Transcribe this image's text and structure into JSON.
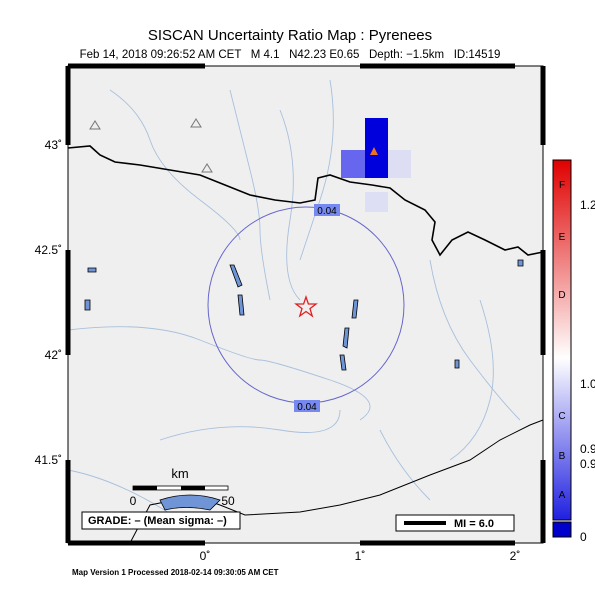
{
  "header": {
    "title": "SISCAN Uncertainty Ratio Map : Pyrenees",
    "subtitle": "Feb 14, 2018 09:26:52 AM CET   M 4.1   N42.23 E0.65   Depth: −1.5km   ID:14519"
  },
  "map": {
    "lat_labels": [
      "43˚",
      "42.5˚",
      "42˚",
      "41.5˚"
    ],
    "lon_labels": [
      "0˚",
      "1˚",
      "2˚"
    ],
    "contour_labels": [
      "0.04",
      "0.04"
    ],
    "scale": {
      "unit": "km",
      "start": "0",
      "end": "50"
    },
    "grade": "GRADE: – (Mean sigma: –)",
    "mi": "MI = 6.0"
  },
  "colorbar": {
    "letters": [
      "F",
      "E",
      "D",
      "C",
      "B",
      "A"
    ],
    "values": [
      "1.2",
      "1.0",
      "0.9",
      "0.9",
      "0"
    ]
  },
  "footer": "Map Version 1 Processed 2018-02-14 09:30:05 AM CET"
}
